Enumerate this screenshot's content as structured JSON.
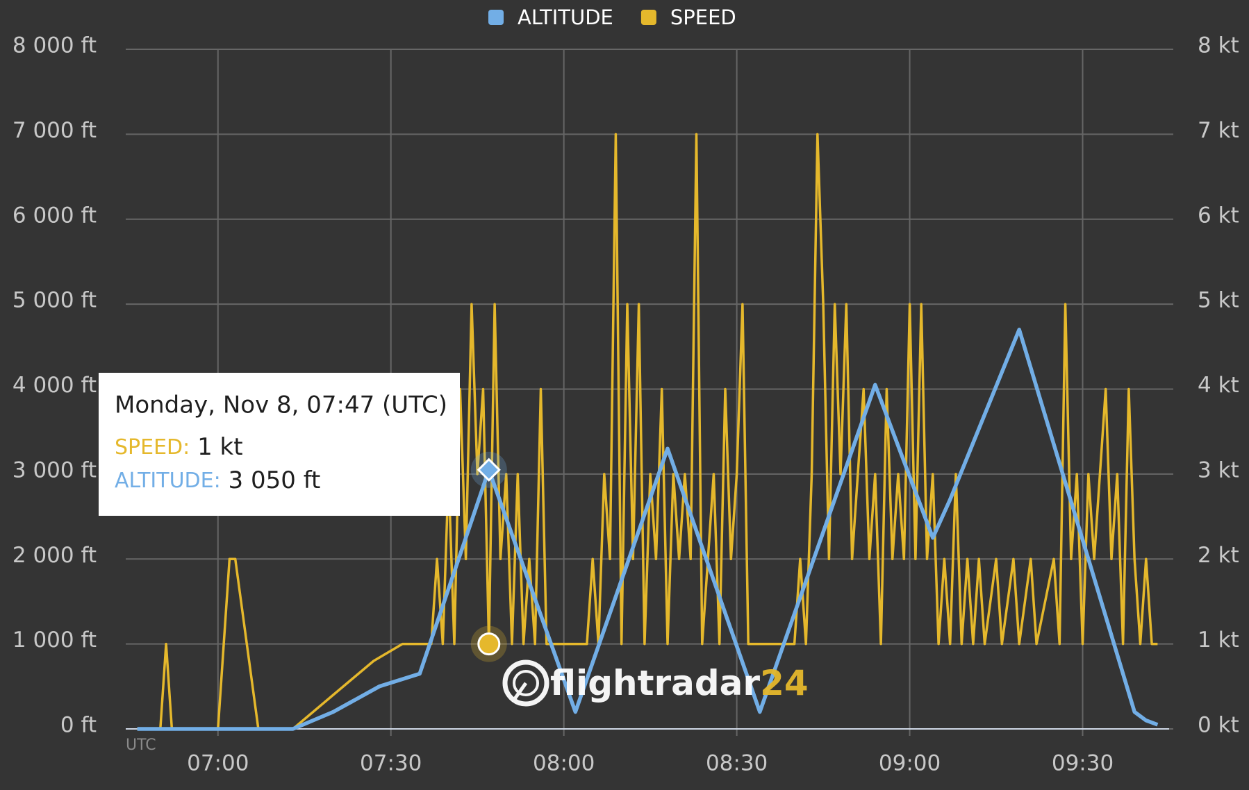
{
  "chart_data": {
    "type": "line",
    "legend": "top",
    "grid": true,
    "x_label": "UTC",
    "xlim": [
      "06:44",
      "09:45"
    ],
    "xticks": [
      "07:00",
      "07:30",
      "08:00",
      "08:30",
      "09:00",
      "09:30"
    ],
    "ylim": [
      0,
      8000
    ],
    "yticks": [
      {
        "value": 0,
        "label": "0 ft"
      },
      {
        "value": 1000,
        "label": "1 000 ft"
      },
      {
        "value": 2000,
        "label": "2 000 ft"
      },
      {
        "value": 3000,
        "label": "3 000 ft"
      },
      {
        "value": 4000,
        "label": "4 000 ft"
      },
      {
        "value": 5000,
        "label": "5 000 ft"
      },
      {
        "value": 6000,
        "label": "6 000 ft"
      },
      {
        "value": 7000,
        "label": "7 000 ft"
      },
      {
        "value": 8000,
        "label": "8 000 ft"
      }
    ],
    "y2lim": [
      0,
      8
    ],
    "y2ticks": [
      {
        "value": 0,
        "label": "0 kt"
      },
      {
        "value": 1,
        "label": "1 kt"
      },
      {
        "value": 2,
        "label": "2 kt"
      },
      {
        "value": 3,
        "label": "3 kt"
      },
      {
        "value": 4,
        "label": "4 kt"
      },
      {
        "value": 5,
        "label": "5 kt"
      },
      {
        "value": 6,
        "label": "6 kt"
      },
      {
        "value": 7,
        "label": "7 kt"
      },
      {
        "value": 8,
        "label": "8 kt"
      }
    ],
    "series": [
      {
        "name": "SPEED",
        "color": "#e5b82c",
        "axis": "y2",
        "x": [
          "06:46",
          "06:50",
          "06:51",
          "06:52",
          "07:00",
          "07:01",
          "07:02",
          "07:03",
          "07:05",
          "07:07",
          "07:13",
          "07:20",
          "07:27",
          "07:32",
          "07:37",
          "07:38",
          "07:39",
          "07:40",
          "07:41",
          "07:42",
          "07:43",
          "07:44",
          "07:45",
          "07:46",
          "07:47",
          "07:48",
          "07:49",
          "07:50",
          "07:51",
          "07:52",
          "07:53",
          "07:54",
          "07:55",
          "07:56",
          "07:57",
          "08:04",
          "08:05",
          "08:06",
          "08:07",
          "08:08",
          "08:09",
          "08:10",
          "08:11",
          "08:12",
          "08:13",
          "08:14",
          "08:15",
          "08:16",
          "08:17",
          "08:18",
          "08:19",
          "08:20",
          "08:21",
          "08:22",
          "08:23",
          "08:24",
          "08:25",
          "08:26",
          "08:27",
          "08:28",
          "08:29",
          "08:30",
          "08:31",
          "08:32",
          "08:40",
          "08:41",
          "08:42",
          "08:43",
          "08:44",
          "08:45",
          "08:46",
          "08:47",
          "08:48",
          "08:49",
          "08:50",
          "08:51",
          "08:52",
          "08:53",
          "08:54",
          "08:55",
          "08:56",
          "08:57",
          "08:58",
          "08:59",
          "09:00",
          "09:01",
          "09:02",
          "09:03",
          "09:04",
          "09:05",
          "09:06",
          "09:07",
          "09:08",
          "09:09",
          "09:10",
          "09:11",
          "09:12",
          "09:13",
          "09:15",
          "09:16",
          "09:18",
          "09:19",
          "09:21",
          "09:22",
          "09:25",
          "09:26",
          "09:27",
          "09:28",
          "09:29",
          "09:30",
          "09:31",
          "09:32",
          "09:33",
          "09:34",
          "09:35",
          "09:36",
          "09:37",
          "09:38",
          "09:39",
          "09:40",
          "09:41",
          "09:42",
          "09:43"
        ],
        "values": [
          0,
          0,
          1,
          0,
          0,
          1,
          2,
          2,
          1,
          0,
          0,
          0.4,
          0.8,
          1,
          1,
          2,
          1,
          3,
          1,
          4,
          2,
          5,
          3,
          4,
          1,
          5,
          2,
          3,
          1,
          3,
          1,
          2,
          1,
          4,
          1,
          1,
          2,
          1,
          3,
          2,
          7,
          1,
          5,
          2,
          5,
          1,
          3,
          2,
          4,
          1,
          3,
          2,
          3,
          2,
          7,
          1,
          2,
          3,
          1,
          4,
          2,
          3,
          5,
          1,
          1,
          2,
          1,
          3,
          7,
          5,
          2,
          5,
          3,
          5,
          2,
          3,
          4,
          2,
          3,
          1,
          4,
          2,
          3,
          2,
          5,
          2,
          5,
          2,
          3,
          1,
          2,
          1,
          3,
          1,
          2,
          1,
          2,
          1,
          2,
          1,
          2,
          1,
          2,
          1,
          2,
          1,
          5,
          2,
          3,
          1,
          3,
          2,
          3,
          4,
          2,
          3,
          1,
          4,
          2,
          1,
          2,
          1,
          1
        ]
      },
      {
        "name": "ALTITUDE",
        "color": "#72aee6",
        "axis": "y",
        "x": [
          "06:46",
          "07:13",
          "07:20",
          "07:28",
          "07:35",
          "07:47",
          "08:02",
          "08:18",
          "08:34",
          "08:54",
          "09:04",
          "09:07",
          "09:19",
          "09:39",
          "09:41",
          "09:43"
        ],
        "values": [
          0,
          0,
          200,
          500,
          650,
          3050,
          200,
          3300,
          200,
          4050,
          2250,
          2700,
          4700,
          200,
          100,
          50
        ]
      }
    ],
    "tooltip": {
      "title": "Monday, Nov 8, 07:47 (UTC)",
      "speed_label": "SPEED:",
      "speed_value": "1 kt",
      "altitude_label": "ALTITUDE:",
      "altitude_value": "3 050 ft"
    },
    "watermark": {
      "text": "flightradar",
      "accent": "24"
    }
  }
}
